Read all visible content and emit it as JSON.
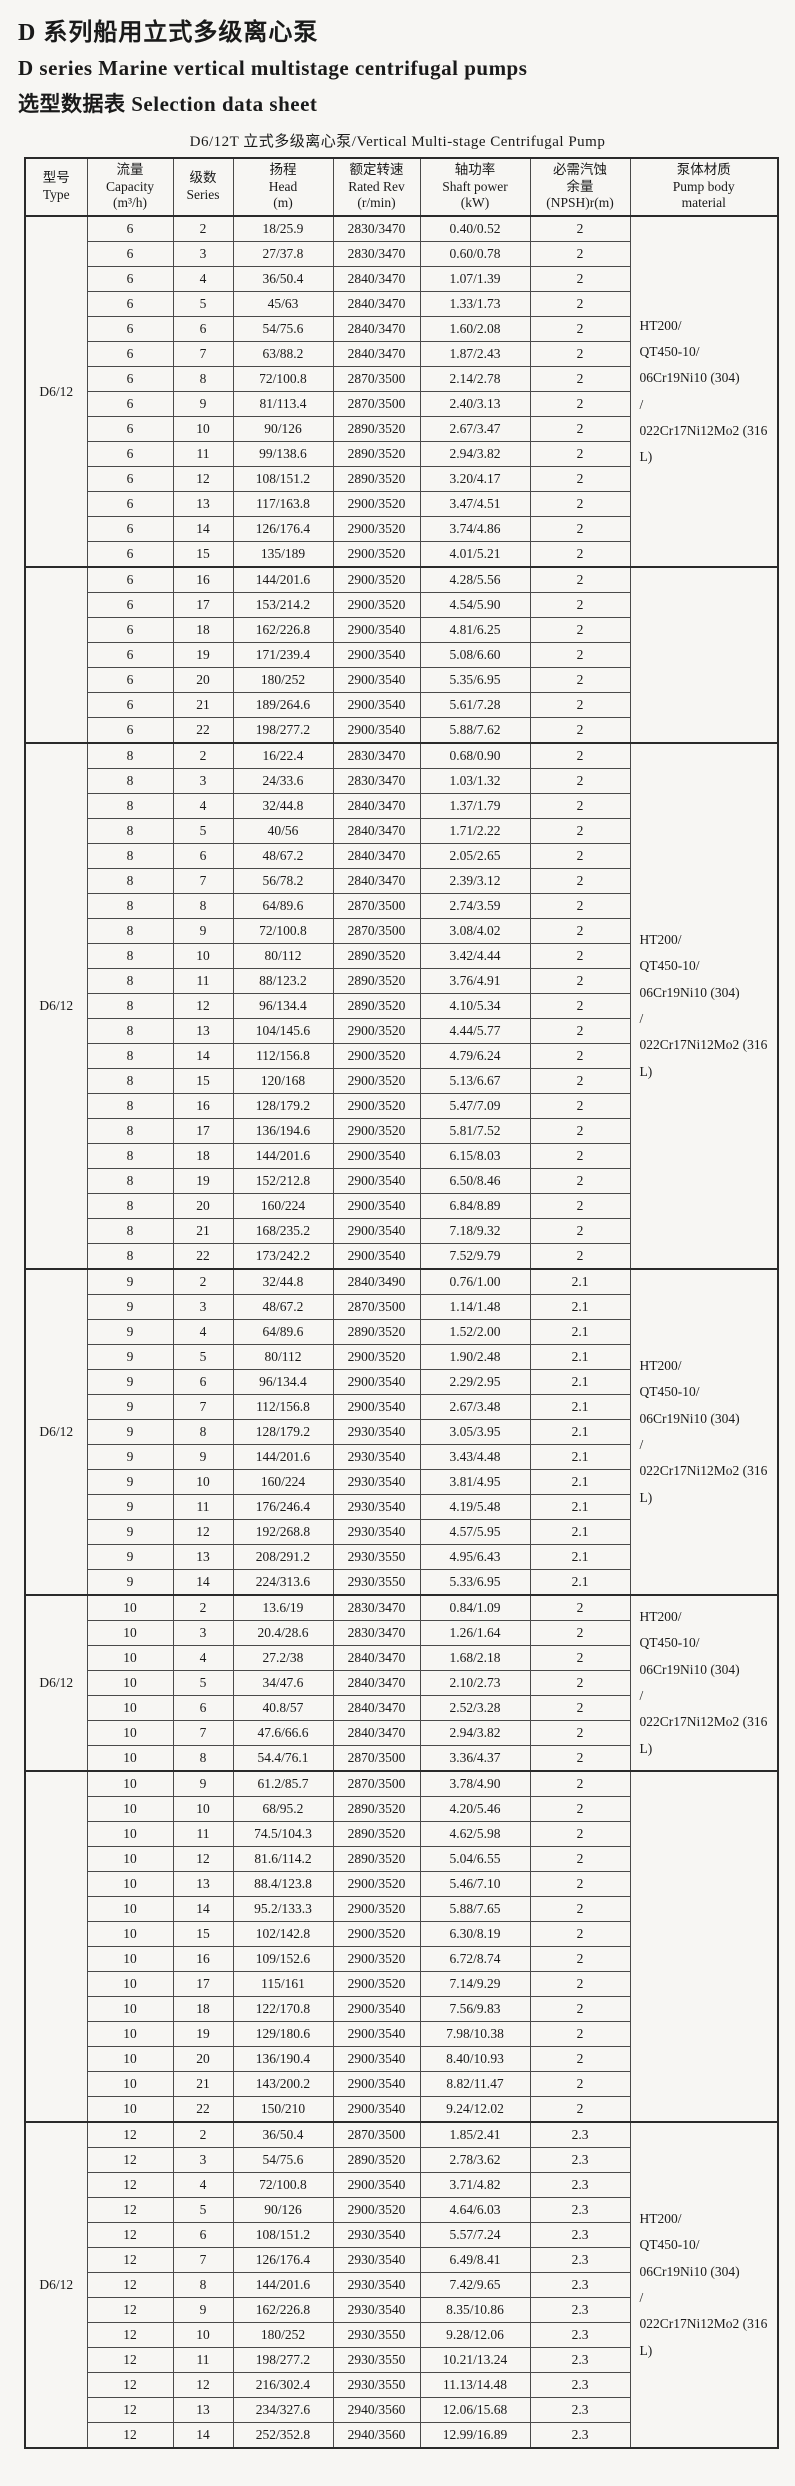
{
  "page": {
    "title_zh": "D 系列船用立式多级离心泵",
    "title_en": "D series Marine vertical multistage centrifugal pumps",
    "subtitle": "选型数据表 Selection data sheet",
    "table_caption": "D6/12T 立式多级离心泵/Vertical Multi-stage Centrifugal Pump"
  },
  "table": {
    "columns": [
      {
        "name": "type",
        "lines": [
          "型号",
          "Type"
        ]
      },
      {
        "name": "capacity",
        "lines": [
          "流量",
          "Capacity",
          "(m³/h)"
        ]
      },
      {
        "name": "series",
        "lines": [
          "级数",
          "Series"
        ]
      },
      {
        "name": "head",
        "lines": [
          "扬程",
          "Head",
          "(m)"
        ]
      },
      {
        "name": "rated-rev",
        "lines": [
          "额定转速",
          "Rated Rev",
          "(r/min)"
        ]
      },
      {
        "name": "shaft-power",
        "lines": [
          "轴功率",
          "Shaft power",
          "(kW)"
        ]
      },
      {
        "name": "npsh",
        "lines": [
          "必需汽蚀",
          "余量",
          "(NPSH)r(m)"
        ]
      },
      {
        "name": "material",
        "lines": [
          "泵体材质",
          "Pump body",
          "material"
        ]
      }
    ],
    "sections": [
      {
        "type": "D6/12",
        "material_lines": [
          "HT200/",
          "QT450-10/",
          "06Cr19Ni10 (304)",
          "/",
          "022Cr17Ni12Mo2 (316L)"
        ],
        "rows": [
          [
            "6",
            "2",
            "18/25.9",
            "2830/3470",
            "0.40/0.52",
            "2"
          ],
          [
            "6",
            "3",
            "27/37.8",
            "2830/3470",
            "0.60/0.78",
            "2"
          ],
          [
            "6",
            "4",
            "36/50.4",
            "2840/3470",
            "1.07/1.39",
            "2"
          ],
          [
            "6",
            "5",
            "45/63",
            "2840/3470",
            "1.33/1.73",
            "2"
          ],
          [
            "6",
            "6",
            "54/75.6",
            "2840/3470",
            "1.60/2.08",
            "2"
          ],
          [
            "6",
            "7",
            "63/88.2",
            "2840/3470",
            "1.87/2.43",
            "2"
          ],
          [
            "6",
            "8",
            "72/100.8",
            "2870/3500",
            "2.14/2.78",
            "2"
          ],
          [
            "6",
            "9",
            "81/113.4",
            "2870/3500",
            "2.40/3.13",
            "2"
          ],
          [
            "6",
            "10",
            "90/126",
            "2890/3520",
            "2.67/3.47",
            "2"
          ],
          [
            "6",
            "11",
            "99/138.6",
            "2890/3520",
            "2.94/3.82",
            "2"
          ],
          [
            "6",
            "12",
            "108/151.2",
            "2890/3520",
            "3.20/4.17",
            "2"
          ],
          [
            "6",
            "13",
            "117/163.8",
            "2900/3520",
            "3.47/4.51",
            "2"
          ],
          [
            "6",
            "14",
            "126/176.4",
            "2900/3520",
            "3.74/4.86",
            "2"
          ],
          [
            "6",
            "15",
            "135/189",
            "2900/3520",
            "4.01/5.21",
            "2"
          ]
        ]
      },
      {
        "type": "",
        "material_lines": [],
        "rows": [
          [
            "6",
            "16",
            "144/201.6",
            "2900/3520",
            "4.28/5.56",
            "2"
          ],
          [
            "6",
            "17",
            "153/214.2",
            "2900/3520",
            "4.54/5.90",
            "2"
          ],
          [
            "6",
            "18",
            "162/226.8",
            "2900/3540",
            "4.81/6.25",
            "2"
          ],
          [
            "6",
            "19",
            "171/239.4",
            "2900/3540",
            "5.08/6.60",
            "2"
          ],
          [
            "6",
            "20",
            "180/252",
            "2900/3540",
            "5.35/6.95",
            "2"
          ],
          [
            "6",
            "21",
            "189/264.6",
            "2900/3540",
            "5.61/7.28",
            "2"
          ],
          [
            "6",
            "22",
            "198/277.2",
            "2900/3540",
            "5.88/7.62",
            "2"
          ]
        ]
      },
      {
        "type": "D6/12",
        "material_lines": [
          "HT200/",
          "QT450-10/",
          "06Cr19Ni10 (304)",
          "/",
          "022Cr17Ni12Mo2 (316L)"
        ],
        "rows": [
          [
            "8",
            "2",
            "16/22.4",
            "2830/3470",
            "0.68/0.90",
            "2"
          ],
          [
            "8",
            "3",
            "24/33.6",
            "2830/3470",
            "1.03/1.32",
            "2"
          ],
          [
            "8",
            "4",
            "32/44.8",
            "2840/3470",
            "1.37/1.79",
            "2"
          ],
          [
            "8",
            "5",
            "40/56",
            "2840/3470",
            "1.71/2.22",
            "2"
          ],
          [
            "8",
            "6",
            "48/67.2",
            "2840/3470",
            "2.05/2.65",
            "2"
          ],
          [
            "8",
            "7",
            "56/78.2",
            "2840/3470",
            "2.39/3.12",
            "2"
          ],
          [
            "8",
            "8",
            "64/89.6",
            "2870/3500",
            "2.74/3.59",
            "2"
          ],
          [
            "8",
            "9",
            "72/100.8",
            "2870/3500",
            "3.08/4.02",
            "2"
          ],
          [
            "8",
            "10",
            "80/112",
            "2890/3520",
            "3.42/4.44",
            "2"
          ],
          [
            "8",
            "11",
            "88/123.2",
            "2890/3520",
            "3.76/4.91",
            "2"
          ],
          [
            "8",
            "12",
            "96/134.4",
            "2890/3520",
            "4.10/5.34",
            "2"
          ],
          [
            "8",
            "13",
            "104/145.6",
            "2900/3520",
            "4.44/5.77",
            "2"
          ],
          [
            "8",
            "14",
            "112/156.8",
            "2900/3520",
            "4.79/6.24",
            "2"
          ],
          [
            "8",
            "15",
            "120/168",
            "2900/3520",
            "5.13/6.67",
            "2"
          ],
          [
            "8",
            "16",
            "128/179.2",
            "2900/3520",
            "5.47/7.09",
            "2"
          ],
          [
            "8",
            "17",
            "136/194.6",
            "2900/3520",
            "5.81/7.52",
            "2"
          ],
          [
            "8",
            "18",
            "144/201.6",
            "2900/3540",
            "6.15/8.03",
            "2"
          ],
          [
            "8",
            "19",
            "152/212.8",
            "2900/3540",
            "6.50/8.46",
            "2"
          ],
          [
            "8",
            "20",
            "160/224",
            "2900/3540",
            "6.84/8.89",
            "2"
          ],
          [
            "8",
            "21",
            "168/235.2",
            "2900/3540",
            "7.18/9.32",
            "2"
          ],
          [
            "8",
            "22",
            "173/242.2",
            "2900/3540",
            "7.52/9.79",
            "2"
          ]
        ]
      },
      {
        "type": "D6/12",
        "material_lines": [
          "HT200/",
          "QT450-10/",
          "06Cr19Ni10 (304)",
          "/",
          "022Cr17Ni12Mo2 (316L)"
        ],
        "rows": [
          [
            "9",
            "2",
            "32/44.8",
            "2840/3490",
            "0.76/1.00",
            "2.1"
          ],
          [
            "9",
            "3",
            "48/67.2",
            "2870/3500",
            "1.14/1.48",
            "2.1"
          ],
          [
            "9",
            "4",
            "64/89.6",
            "2890/3520",
            "1.52/2.00",
            "2.1"
          ],
          [
            "9",
            "5",
            "80/112",
            "2900/3520",
            "1.90/2.48",
            "2.1"
          ],
          [
            "9",
            "6",
            "96/134.4",
            "2900/3540",
            "2.29/2.95",
            "2.1"
          ],
          [
            "9",
            "7",
            "112/156.8",
            "2900/3540",
            "2.67/3.48",
            "2.1"
          ],
          [
            "9",
            "8",
            "128/179.2",
            "2930/3540",
            "3.05/3.95",
            "2.1"
          ],
          [
            "9",
            "9",
            "144/201.6",
            "2930/3540",
            "3.43/4.48",
            "2.1"
          ],
          [
            "9",
            "10",
            "160/224",
            "2930/3540",
            "3.81/4.95",
            "2.1"
          ],
          [
            "9",
            "11",
            "176/246.4",
            "2930/3540",
            "4.19/5.48",
            "2.1"
          ],
          [
            "9",
            "12",
            "192/268.8",
            "2930/3540",
            "4.57/5.95",
            "2.1"
          ],
          [
            "9",
            "13",
            "208/291.2",
            "2930/3550",
            "4.95/6.43",
            "2.1"
          ],
          [
            "9",
            "14",
            "224/313.6",
            "2930/3550",
            "5.33/6.95",
            "2.1"
          ]
        ]
      },
      {
        "type": "D6/12",
        "material_lines": [
          "HT200/",
          "QT450-10/",
          "06Cr19Ni10 (304)",
          "/",
          "022Cr17Ni12Mo2 (316L)"
        ],
        "rows": [
          [
            "10",
            "2",
            "13.6/19",
            "2830/3470",
            "0.84/1.09",
            "2"
          ],
          [
            "10",
            "3",
            "20.4/28.6",
            "2830/3470",
            "1.26/1.64",
            "2"
          ],
          [
            "10",
            "4",
            "27.2/38",
            "2840/3470",
            "1.68/2.18",
            "2"
          ],
          [
            "10",
            "5",
            "34/47.6",
            "2840/3470",
            "2.10/2.73",
            "2"
          ],
          [
            "10",
            "6",
            "40.8/57",
            "2840/3470",
            "2.52/3.28",
            "2"
          ],
          [
            "10",
            "7",
            "47.6/66.6",
            "2840/3470",
            "2.94/3.82",
            "2"
          ],
          [
            "10",
            "8",
            "54.4/76.1",
            "2870/3500",
            "3.36/4.37",
            "2"
          ]
        ]
      },
      {
        "type": "",
        "material_lines": [],
        "rows": [
          [
            "10",
            "9",
            "61.2/85.7",
            "2870/3500",
            "3.78/4.90",
            "2"
          ],
          [
            "10",
            "10",
            "68/95.2",
            "2890/3520",
            "4.20/5.46",
            "2"
          ],
          [
            "10",
            "11",
            "74.5/104.3",
            "2890/3520",
            "4.62/5.98",
            "2"
          ],
          [
            "10",
            "12",
            "81.6/114.2",
            "2890/3520",
            "5.04/6.55",
            "2"
          ],
          [
            "10",
            "13",
            "88.4/123.8",
            "2900/3520",
            "5.46/7.10",
            "2"
          ],
          [
            "10",
            "14",
            "95.2/133.3",
            "2900/3520",
            "5.88/7.65",
            "2"
          ],
          [
            "10",
            "15",
            "102/142.8",
            "2900/3520",
            "6.30/8.19",
            "2"
          ],
          [
            "10",
            "16",
            "109/152.6",
            "2900/3520",
            "6.72/8.74",
            "2"
          ],
          [
            "10",
            "17",
            "115/161",
            "2900/3520",
            "7.14/9.29",
            "2"
          ],
          [
            "10",
            "18",
            "122/170.8",
            "2900/3540",
            "7.56/9.83",
            "2"
          ],
          [
            "10",
            "19",
            "129/180.6",
            "2900/3540",
            "7.98/10.38",
            "2"
          ],
          [
            "10",
            "20",
            "136/190.4",
            "2900/3540",
            "8.40/10.93",
            "2"
          ],
          [
            "10",
            "21",
            "143/200.2",
            "2900/3540",
            "8.82/11.47",
            "2"
          ],
          [
            "10",
            "22",
            "150/210",
            "2900/3540",
            "9.24/12.02",
            "2"
          ]
        ]
      },
      {
        "type": "D6/12",
        "material_lines": [
          "HT200/",
          "QT450-10/",
          "06Cr19Ni10 (304)",
          "/",
          "022Cr17Ni12Mo2 (316L)"
        ],
        "rows": [
          [
            "12",
            "2",
            "36/50.4",
            "2870/3500",
            "1.85/2.41",
            "2.3"
          ],
          [
            "12",
            "3",
            "54/75.6",
            "2890/3520",
            "2.78/3.62",
            "2.3"
          ],
          [
            "12",
            "4",
            "72/100.8",
            "2900/3540",
            "3.71/4.82",
            "2.3"
          ],
          [
            "12",
            "5",
            "90/126",
            "2900/3520",
            "4.64/6.03",
            "2.3"
          ],
          [
            "12",
            "6",
            "108/151.2",
            "2930/3540",
            "5.57/7.24",
            "2.3"
          ],
          [
            "12",
            "7",
            "126/176.4",
            "2930/3540",
            "6.49/8.41",
            "2.3"
          ],
          [
            "12",
            "8",
            "144/201.6",
            "2930/3540",
            "7.42/9.65",
            "2.3"
          ],
          [
            "12",
            "9",
            "162/226.8",
            "2930/3540",
            "8.35/10.86",
            "2.3"
          ],
          [
            "12",
            "10",
            "180/252",
            "2930/3550",
            "9.28/12.06",
            "2.3"
          ],
          [
            "12",
            "11",
            "198/277.2",
            "2930/3550",
            "10.21/13.24",
            "2.3"
          ],
          [
            "12",
            "12",
            "216/302.4",
            "2930/3550",
            "11.13/14.48",
            "2.3"
          ],
          [
            "12",
            "13",
            "234/327.6",
            "2940/3560",
            "12.06/15.68",
            "2.3"
          ],
          [
            "12",
            "14",
            "252/352.8",
            "2940/3560",
            "12.99/16.89",
            "2.3"
          ]
        ]
      }
    ]
  }
}
